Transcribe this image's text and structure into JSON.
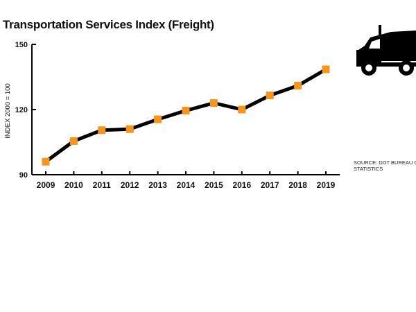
{
  "chart_data": {
    "type": "line",
    "title": "Transportation Services Index (Freight)",
    "xlabel": "",
    "ylabel": "INDEX 2000 = 100",
    "ylim": [
      90,
      150
    ],
    "yticks": [
      90,
      120,
      150
    ],
    "categories": [
      "2009",
      "2010",
      "2011",
      "2012",
      "2013",
      "2014",
      "2015",
      "2016",
      "2017",
      "2018",
      "2019"
    ],
    "series": [
      {
        "values": [
          96,
          105.5,
          110.5,
          111,
          115.5,
          119.5,
          123,
          120,
          126.5,
          131,
          138.5
        ],
        "line_color": "#000000",
        "marker_color": "#f7941d",
        "marker": "square"
      }
    ],
    "grid": false,
    "legend": "none"
  },
  "source_lines": [
    "SOURCE: DOT BUREAU OF TRANSPORTATION",
    "STATISTICS"
  ],
  "icon": "truck-icon"
}
